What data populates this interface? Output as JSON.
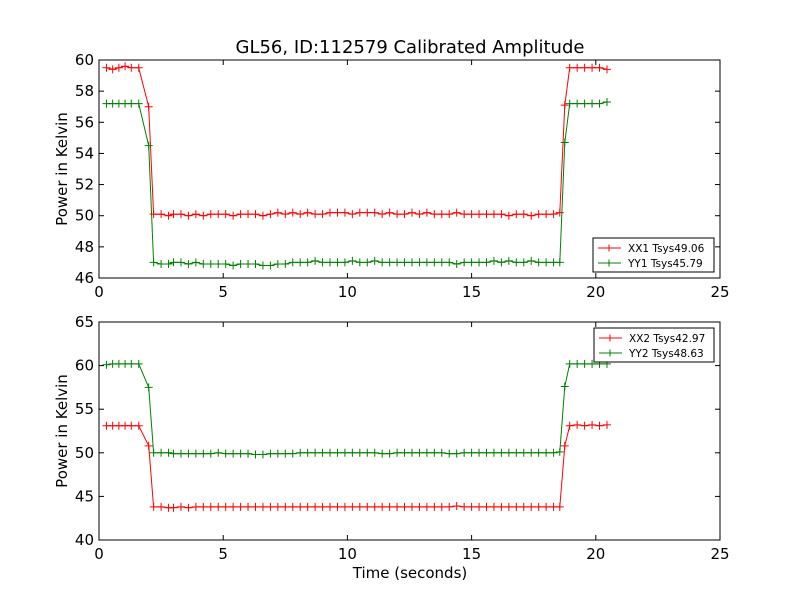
{
  "figure": {
    "title": "GL56, ID:112579 Calibrated Amplitude",
    "xlabel": "Time (seconds)"
  },
  "chart_data": [
    {
      "type": "line",
      "title": "GL56, ID:112579 Calibrated Amplitude",
      "xlabel": "",
      "ylabel": "Power in Kelvin",
      "xlim": [
        0,
        25
      ],
      "ylim": [
        46,
        60
      ],
      "xticks": [
        0,
        5,
        10,
        15,
        20,
        25
      ],
      "yticks": [
        46,
        48,
        50,
        52,
        54,
        56,
        58,
        60
      ],
      "grid": false,
      "legend": "lower-right",
      "series": [
        {
          "name": "XX1 Tsys49.06",
          "color": "#ff0000",
          "marker": "+",
          "x": [
            0.3,
            0.55,
            0.8,
            1.05,
            1.3,
            1.6,
            2.0,
            2.2,
            2.5,
            2.8,
            3.0,
            3.3,
            3.6,
            3.9,
            4.2,
            4.5,
            4.8,
            5.1,
            5.4,
            5.7,
            6.0,
            6.3,
            6.6,
            6.9,
            7.2,
            7.5,
            7.8,
            8.1,
            8.4,
            8.7,
            9.0,
            9.3,
            9.6,
            9.9,
            10.2,
            10.5,
            10.8,
            11.1,
            11.4,
            11.7,
            12.0,
            12.3,
            12.6,
            12.9,
            13.2,
            13.5,
            13.8,
            14.1,
            14.4,
            14.7,
            15.0,
            15.3,
            15.6,
            15.9,
            16.2,
            16.5,
            16.8,
            17.1,
            17.4,
            17.7,
            18.0,
            18.3,
            18.55,
            18.75,
            18.95,
            19.25,
            19.55,
            19.85,
            20.15,
            20.45
          ],
          "y": [
            59.5,
            59.4,
            59.5,
            59.6,
            59.5,
            59.5,
            57.0,
            50.1,
            50.1,
            50.0,
            50.1,
            50.1,
            50.0,
            50.1,
            50.0,
            50.1,
            50.1,
            50.1,
            50.0,
            50.1,
            50.1,
            50.1,
            50.0,
            50.1,
            50.2,
            50.1,
            50.2,
            50.1,
            50.2,
            50.1,
            50.1,
            50.2,
            50.2,
            50.2,
            50.1,
            50.2,
            50.2,
            50.2,
            50.1,
            50.2,
            50.1,
            50.1,
            50.2,
            50.1,
            50.2,
            50.1,
            50.1,
            50.1,
            50.2,
            50.1,
            50.1,
            50.1,
            50.1,
            50.1,
            50.1,
            50.0,
            50.1,
            50.1,
            50.0,
            50.1,
            50.1,
            50.1,
            50.2,
            57.1,
            59.5,
            59.5,
            59.5,
            59.5,
            59.5,
            59.4
          ]
        },
        {
          "name": "YY1 Tsys45.79",
          "color": "#008000",
          "marker": "+",
          "x": [
            0.3,
            0.55,
            0.8,
            1.05,
            1.3,
            1.6,
            2.0,
            2.2,
            2.5,
            2.8,
            3.0,
            3.3,
            3.6,
            3.9,
            4.2,
            4.5,
            4.8,
            5.1,
            5.4,
            5.7,
            6.0,
            6.3,
            6.6,
            6.9,
            7.2,
            7.5,
            7.8,
            8.1,
            8.4,
            8.7,
            9.0,
            9.3,
            9.6,
            9.9,
            10.2,
            10.5,
            10.8,
            11.1,
            11.4,
            11.7,
            12.0,
            12.3,
            12.6,
            12.9,
            13.2,
            13.5,
            13.8,
            14.1,
            14.4,
            14.7,
            15.0,
            15.3,
            15.6,
            15.9,
            16.2,
            16.5,
            16.8,
            17.1,
            17.4,
            17.7,
            18.0,
            18.3,
            18.55,
            18.75,
            18.95,
            19.25,
            19.55,
            19.85,
            20.15,
            20.45
          ],
          "y": [
            57.2,
            57.2,
            57.2,
            57.2,
            57.2,
            57.2,
            54.5,
            47.0,
            46.9,
            46.9,
            47.0,
            47.0,
            46.9,
            47.0,
            46.9,
            46.9,
            46.9,
            46.9,
            46.8,
            46.9,
            46.9,
            46.9,
            46.8,
            46.8,
            46.9,
            46.9,
            47.0,
            47.0,
            47.0,
            47.1,
            47.0,
            47.0,
            47.0,
            47.0,
            47.1,
            47.0,
            47.0,
            47.1,
            47.0,
            47.0,
            47.0,
            47.0,
            47.0,
            47.0,
            47.0,
            47.0,
            47.0,
            47.0,
            46.9,
            47.0,
            47.0,
            47.0,
            47.0,
            47.1,
            47.0,
            47.1,
            47.0,
            47.0,
            47.1,
            47.0,
            47.0,
            47.0,
            47.0,
            54.7,
            57.2,
            57.2,
            57.2,
            57.2,
            57.2,
            57.3
          ]
        }
      ]
    },
    {
      "type": "line",
      "title": "",
      "xlabel": "Time (seconds)",
      "ylabel": "Power in Kelvin",
      "xlim": [
        0,
        25
      ],
      "ylim": [
        40,
        65
      ],
      "xticks": [
        0,
        5,
        10,
        15,
        20,
        25
      ],
      "yticks": [
        40,
        45,
        50,
        55,
        60,
        65
      ],
      "grid": false,
      "legend": "upper-right",
      "series": [
        {
          "name": "XX2 Tsys42.97",
          "color": "#ff0000",
          "marker": "+",
          "x": [
            0.3,
            0.55,
            0.8,
            1.05,
            1.3,
            1.6,
            2.0,
            2.2,
            2.5,
            2.8,
            3.0,
            3.3,
            3.6,
            3.9,
            4.2,
            4.5,
            4.8,
            5.1,
            5.4,
            5.7,
            6.0,
            6.3,
            6.6,
            6.9,
            7.2,
            7.5,
            7.8,
            8.1,
            8.4,
            8.7,
            9.0,
            9.3,
            9.6,
            9.9,
            10.2,
            10.5,
            10.8,
            11.1,
            11.4,
            11.7,
            12.0,
            12.3,
            12.6,
            12.9,
            13.2,
            13.5,
            13.8,
            14.1,
            14.4,
            14.7,
            15.0,
            15.3,
            15.6,
            15.9,
            16.2,
            16.5,
            16.8,
            17.1,
            17.4,
            17.7,
            18.0,
            18.3,
            18.55,
            18.75,
            18.95,
            19.25,
            19.55,
            19.85,
            20.15,
            20.45
          ],
          "y": [
            53.1,
            53.1,
            53.1,
            53.1,
            53.1,
            53.1,
            50.8,
            43.8,
            43.8,
            43.7,
            43.7,
            43.8,
            43.7,
            43.8,
            43.8,
            43.8,
            43.8,
            43.8,
            43.8,
            43.8,
            43.8,
            43.8,
            43.8,
            43.8,
            43.8,
            43.8,
            43.8,
            43.8,
            43.8,
            43.8,
            43.8,
            43.8,
            43.8,
            43.8,
            43.8,
            43.8,
            43.8,
            43.8,
            43.8,
            43.8,
            43.8,
            43.8,
            43.8,
            43.8,
            43.8,
            43.8,
            43.8,
            43.8,
            43.9,
            43.8,
            43.8,
            43.8,
            43.8,
            43.8,
            43.8,
            43.8,
            43.8,
            43.8,
            43.8,
            43.8,
            43.8,
            43.8,
            43.8,
            50.8,
            53.1,
            53.2,
            53.1,
            53.2,
            53.1,
            53.2
          ]
        },
        {
          "name": "YY2 Tsys48.63",
          "color": "#008000",
          "marker": "+",
          "x": [
            0.3,
            0.55,
            0.8,
            1.05,
            1.3,
            1.6,
            2.0,
            2.2,
            2.5,
            2.8,
            3.0,
            3.3,
            3.6,
            3.9,
            4.2,
            4.5,
            4.8,
            5.1,
            5.4,
            5.7,
            6.0,
            6.3,
            6.6,
            6.9,
            7.2,
            7.5,
            7.8,
            8.1,
            8.4,
            8.7,
            9.0,
            9.3,
            9.6,
            9.9,
            10.2,
            10.5,
            10.8,
            11.1,
            11.4,
            11.7,
            12.0,
            12.3,
            12.6,
            12.9,
            13.2,
            13.5,
            13.8,
            14.1,
            14.4,
            14.7,
            15.0,
            15.3,
            15.6,
            15.9,
            16.2,
            16.5,
            16.8,
            17.1,
            17.4,
            17.7,
            18.0,
            18.3,
            18.55,
            18.75,
            18.95,
            19.25,
            19.55,
            19.85,
            20.15,
            20.45
          ],
          "y": [
            60.1,
            60.2,
            60.2,
            60.2,
            60.2,
            60.2,
            57.5,
            50.0,
            50.0,
            50.0,
            49.9,
            49.9,
            49.9,
            49.9,
            49.9,
            49.9,
            50.0,
            49.9,
            49.9,
            49.9,
            49.9,
            49.8,
            49.8,
            49.9,
            49.9,
            49.9,
            49.9,
            50.0,
            50.0,
            50.0,
            50.0,
            50.0,
            50.0,
            50.0,
            50.0,
            50.0,
            50.0,
            50.0,
            49.9,
            49.9,
            50.0,
            50.0,
            50.0,
            50.0,
            50.0,
            50.0,
            50.0,
            49.9,
            49.9,
            50.0,
            50.0,
            50.0,
            50.0,
            50.0,
            50.0,
            50.0,
            50.0,
            50.0,
            50.0,
            50.0,
            50.0,
            50.0,
            50.1,
            57.6,
            60.2,
            60.2,
            60.2,
            60.2,
            60.2,
            60.2
          ]
        }
      ]
    }
  ]
}
